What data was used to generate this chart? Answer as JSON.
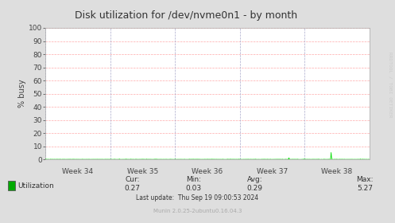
{
  "title": "Disk utilization for /dev/nvme0n1 - by month",
  "ylabel": "% busy",
  "background_color": "#dedede",
  "plot_bg_color": "#ffffff",
  "grid_color_h": "#ffaaaa",
  "grid_color_v": "#aaaacc",
  "line_color": "#00dd00",
  "ylim": [
    0,
    100
  ],
  "yticks": [
    0,
    10,
    20,
    30,
    40,
    50,
    60,
    70,
    80,
    90,
    100
  ],
  "x_week_labels": [
    "Week 34",
    "Week 35",
    "Week 36",
    "Week 37",
    "Week 38"
  ],
  "legend_label": "Utilization",
  "legend_color": "#00aa00",
  "cur_val": "0.27",
  "min_val": "0.03",
  "avg_val": "0.29",
  "max_val": "5.27",
  "last_update": "Last update:  Thu Sep 19 09:00:53 2024",
  "munin_text": "Munin 2.0.25-2ubuntu0.16.04.3",
  "rrdtool_text": "RRDTOOL / TOBI OETIKER",
  "title_fontsize": 9,
  "axis_label_fontsize": 7,
  "tick_fontsize": 6.5,
  "stats_fontsize": 6.5,
  "footer_fontsize": 5.5,
  "rrdtool_fontsize": 4.5
}
